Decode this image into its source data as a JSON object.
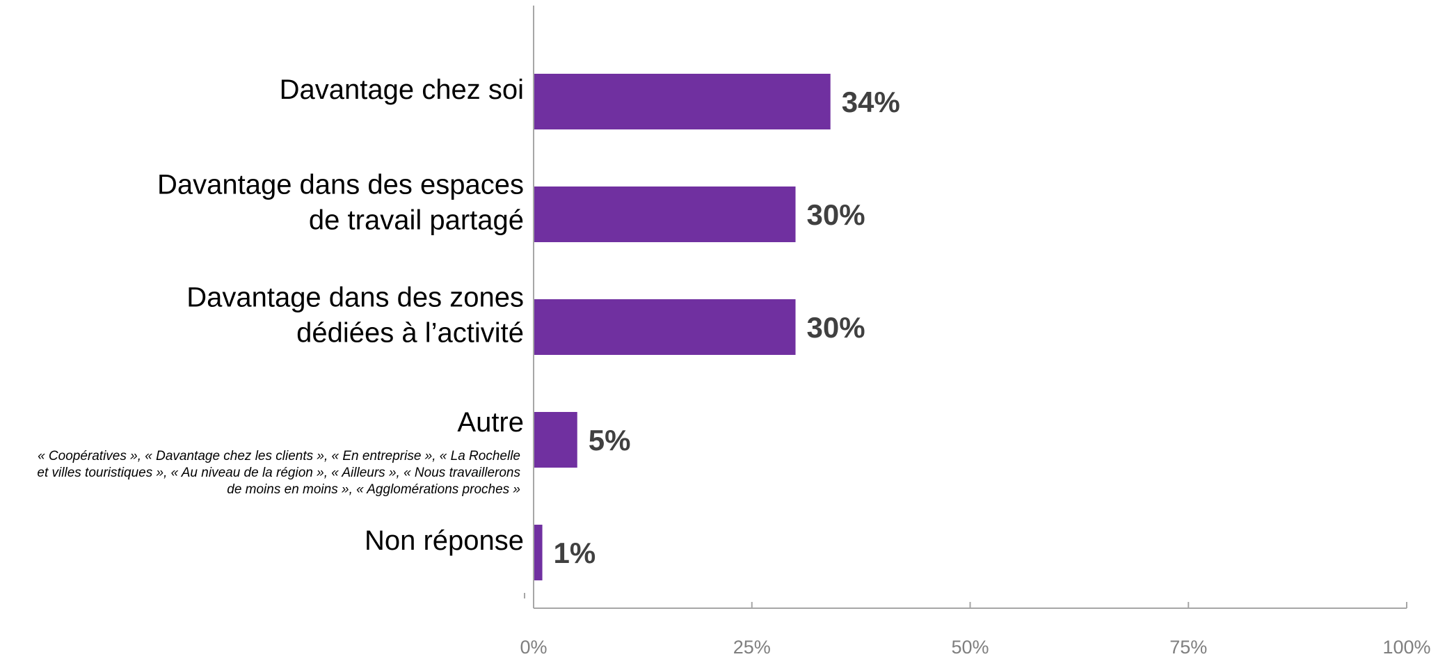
{
  "chart_data": {
    "type": "bar",
    "orientation": "horizontal",
    "categories": [
      [
        "Davantage chez soi"
      ],
      [
        "Davantage dans des espaces",
        "de travail partagé"
      ],
      [
        "Davantage dans des zones",
        "dédiées à l’activité"
      ],
      [
        "Autre"
      ],
      [
        "Non réponse"
      ]
    ],
    "category_notes": [
      [],
      [],
      [],
      [
        "« Coopératives », « Davantage chez les clients », « En entreprise », « La Rochelle",
        "et villes touristiques », « Au niveau de la région », « Ailleurs », « Nous travaillerons",
        "de moins en moins », « Agglomérations proches »"
      ],
      []
    ],
    "values": [
      34,
      30,
      30,
      5,
      1
    ],
    "value_labels": [
      "34%",
      "30%",
      "30%",
      "5%",
      "1%"
    ],
    "xlim": [
      0,
      100
    ],
    "x_ticks": [
      0,
      25,
      50,
      75,
      100
    ],
    "x_tick_labels": [
      "0%",
      "25%",
      "50%",
      "75%",
      "100%"
    ],
    "bar_color": "#7030A0",
    "grid": false,
    "legend": "none"
  }
}
